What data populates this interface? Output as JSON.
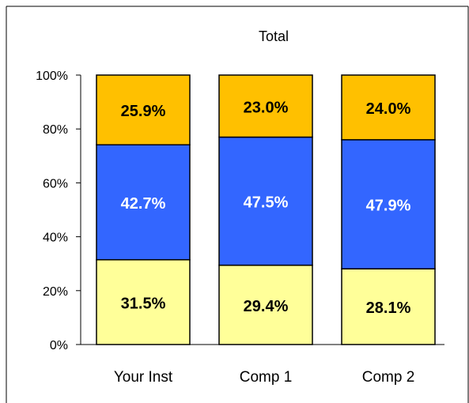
{
  "chart_data": {
    "type": "bar",
    "stacked": true,
    "title": "Total",
    "categories": [
      "Your Inst",
      "Comp 1",
      "Comp 2"
    ],
    "series": [
      {
        "values": [
          31.5,
          29.4,
          28.1
        ],
        "color": "#ffff99",
        "label_color": "#000000"
      },
      {
        "values": [
          42.7,
          47.5,
          47.9
        ],
        "color": "#3366ff",
        "label_color": "#ffffff"
      },
      {
        "values": [
          25.9,
          23.0,
          24.0
        ],
        "color": "#ffc000",
        "label_color": "#000000"
      }
    ],
    "y_ticks": [
      "0%",
      "20%",
      "40%",
      "60%",
      "80%",
      "100%"
    ],
    "ylim": [
      0,
      100
    ],
    "grid": false,
    "legend": "none"
  }
}
